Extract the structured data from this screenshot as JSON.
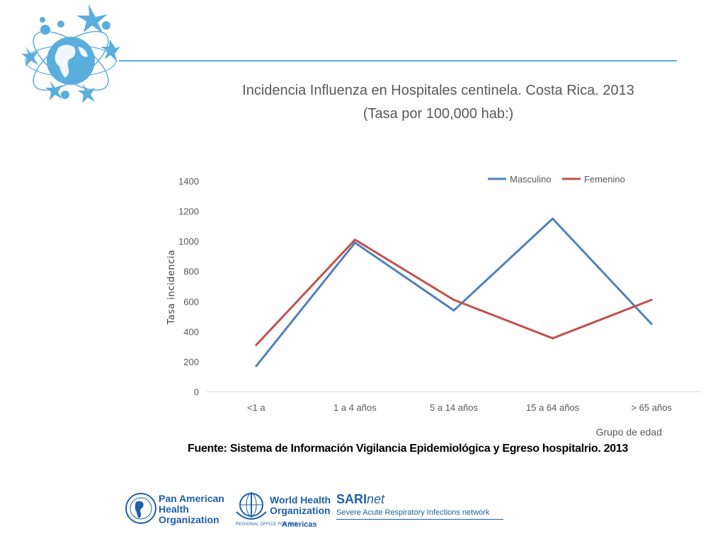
{
  "header": {
    "title_line1": "Incidencia Influenza en Hospitales centinela. Costa Rica. 2013",
    "title_line2": "(Tasa por 100,000 hab:)"
  },
  "chart_data": {
    "type": "line",
    "title": "Incidencia Influenza en Hospitales centinela. Costa Rica. 2013 (Tasa por 100,000 hab:)",
    "xlabel": "Grupo de edad",
    "ylabel": "Tasa incidencia",
    "ylim": [
      0,
      1400
    ],
    "yticks": [
      "0",
      "200",
      "400",
      "600",
      "800",
      "1000",
      "1200",
      "1400"
    ],
    "categories": [
      "<1 a",
      "1 a 4 años",
      "5 a 14 años",
      "15 a 64 años",
      "> 65 años"
    ],
    "legend_position": "top-right",
    "grid": false,
    "series": [
      {
        "name": "Masculino",
        "color": "#4f81bd",
        "values": [
          170,
          990,
          540,
          1150,
          450
        ]
      },
      {
        "name": "Femenino",
        "color": "#c0504d",
        "values": [
          310,
          1010,
          610,
          355,
          610
        ]
      }
    ]
  },
  "source_note": "Fuente: Sistema de Información  Vigilancia Epidemiológica y Egreso hospitalrio. 2013",
  "footer": {
    "paho_lines": [
      "Pan American",
      "Health",
      "Organization"
    ],
    "who_lines": [
      "World Health",
      "Organization"
    ],
    "who_regional": "REGIONAL OFFICE FOR THE",
    "who_americas": "Americas",
    "sari_name": "SARI",
    "sari_net": "net",
    "sari_subtitle": "Severe Acute Respiratory Infections network"
  },
  "colors": {
    "accent": "#5aaedc",
    "logo_blue": "#1f5fa8"
  }
}
